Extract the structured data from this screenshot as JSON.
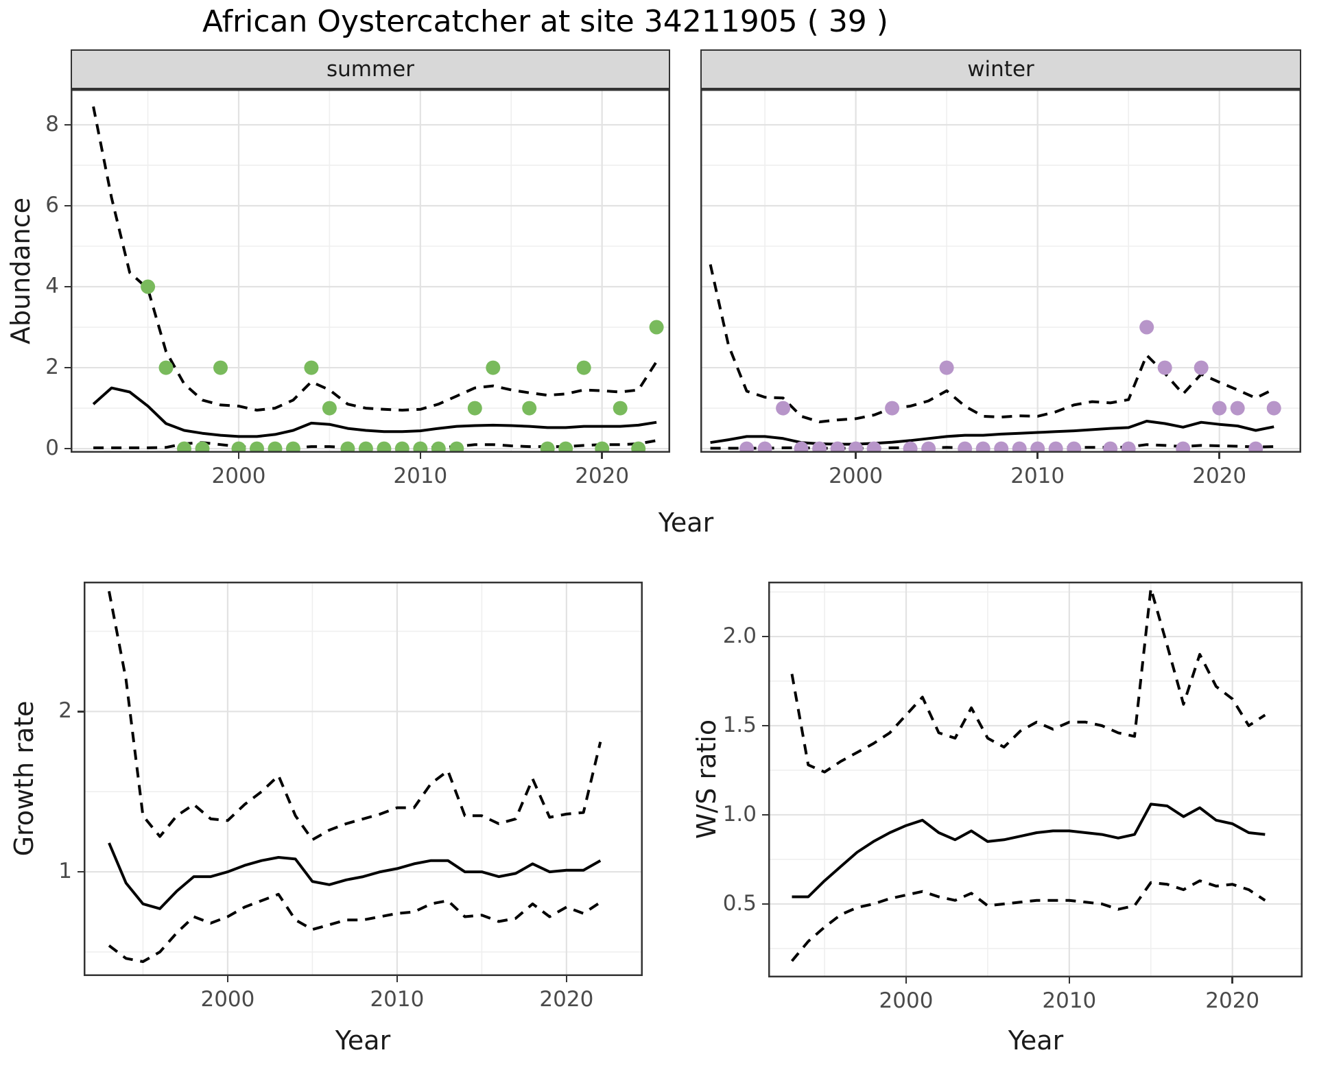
{
  "title": "African Oystercatcher at site 34211905 ( 39 )",
  "colors": {
    "summer_point": "#79ba5c",
    "winter_point": "#b795c9",
    "line": "#000000",
    "grid_major": "#e2e2e2",
    "grid_minor": "#efefef",
    "panel_border": "#333333",
    "strip_background": "#d8d8d8",
    "axis_text": "#4a4a4a",
    "panel_background": "#ffffff"
  },
  "chart_data": [
    {
      "id": "abundance-summer",
      "type": "line",
      "facet_label": "summer",
      "xlabel": "Year",
      "ylabel": "Abundance",
      "xlim": [
        1990.75,
        2023.75
      ],
      "ylim": [
        -0.1,
        8.88
      ],
      "grid": true,
      "legend": "none",
      "show_y_axis": true,
      "xticks_major": [
        2000,
        2010,
        2020
      ],
      "xticks_minor": [
        1995,
        2005,
        2015
      ],
      "xtick_labels": [
        "2000",
        "2010",
        "2020"
      ],
      "yticks_major": [
        0,
        2,
        4,
        6,
        8
      ],
      "yticks_minor": [
        1,
        3,
        5,
        7
      ],
      "ytick_labels": [
        "0",
        "2",
        "4",
        "6",
        "8"
      ],
      "years": [
        1992,
        1993,
        1994,
        1995,
        1996,
        1997,
        1998,
        1999,
        2000,
        2001,
        2002,
        2003,
        2004,
        2005,
        2006,
        2007,
        2008,
        2009,
        2010,
        2011,
        2012,
        2013,
        2014,
        2015,
        2016,
        2017,
        2018,
        2019,
        2020,
        2021,
        2022,
        2023
      ],
      "series": [
        {
          "name": "upper-ci",
          "style": "dashed",
          "values": [
            8.45,
            6.2,
            4.35,
            3.95,
            2.4,
            1.6,
            1.2,
            1.08,
            1.05,
            0.95,
            1.0,
            1.2,
            1.65,
            1.45,
            1.1,
            1.0,
            0.97,
            0.95,
            0.97,
            1.1,
            1.3,
            1.5,
            1.55,
            1.45,
            1.38,
            1.32,
            1.35,
            1.45,
            1.43,
            1.4,
            1.45,
            2.15
          ]
        },
        {
          "name": "lower-ci",
          "style": "dashed",
          "values": [
            0.02,
            0.02,
            0.02,
            0.02,
            0.03,
            0.12,
            0.15,
            0.1,
            0.05,
            0.03,
            0.02,
            0.02,
            0.05,
            0.05,
            0.03,
            0.02,
            0.02,
            0.02,
            0.02,
            0.03,
            0.05,
            0.1,
            0.1,
            0.07,
            0.05,
            0.05,
            0.05,
            0.08,
            0.1,
            0.1,
            0.12,
            0.2
          ]
        },
        {
          "name": "fit",
          "style": "solid",
          "values": [
            1.1,
            1.5,
            1.4,
            1.05,
            0.62,
            0.45,
            0.38,
            0.33,
            0.3,
            0.3,
            0.35,
            0.45,
            0.63,
            0.6,
            0.5,
            0.45,
            0.42,
            0.42,
            0.44,
            0.5,
            0.55,
            0.57,
            0.58,
            0.57,
            0.55,
            0.52,
            0.52,
            0.55,
            0.55,
            0.55,
            0.58,
            0.65
          ]
        }
      ],
      "points": {
        "name": "observed-count",
        "color": "#79ba5c",
        "values": [
          [
            1995,
            4
          ],
          [
            1996,
            2
          ],
          [
            1997,
            0
          ],
          [
            1998,
            0
          ],
          [
            1999,
            2
          ],
          [
            2000,
            0
          ],
          [
            2001,
            0
          ],
          [
            2002,
            0
          ],
          [
            2003,
            0
          ],
          [
            2004,
            2
          ],
          [
            2005,
            1
          ],
          [
            2006,
            0
          ],
          [
            2007,
            0
          ],
          [
            2008,
            0
          ],
          [
            2009,
            0
          ],
          [
            2010,
            0
          ],
          [
            2011,
            0
          ],
          [
            2012,
            0
          ],
          [
            2013,
            1
          ],
          [
            2014,
            2
          ],
          [
            2016,
            1
          ],
          [
            2017,
            0
          ],
          [
            2018,
            0
          ],
          [
            2019,
            2
          ],
          [
            2020,
            0
          ],
          [
            2021,
            1
          ],
          [
            2022,
            0
          ],
          [
            2023,
            3
          ]
        ]
      }
    },
    {
      "id": "abundance-winter",
      "type": "line",
      "facet_label": "winter",
      "xlabel": "Year",
      "ylabel": "Abundance",
      "xlim": [
        1991.45,
        2024.5
      ],
      "ylim": [
        -0.1,
        8.88
      ],
      "grid": true,
      "legend": "none",
      "show_y_axis": false,
      "xticks_major": [
        2000,
        2010,
        2020
      ],
      "xticks_minor": [
        1995,
        2005,
        2015
      ],
      "xtick_labels": [
        "2000",
        "2010",
        "2020"
      ],
      "yticks_major": [
        0,
        2,
        4,
        6,
        8
      ],
      "yticks_minor": [
        1,
        3,
        5,
        7
      ],
      "ytick_labels": [],
      "years": [
        1992,
        1993,
        1994,
        1995,
        1996,
        1997,
        1998,
        1999,
        2000,
        2001,
        2002,
        2003,
        2004,
        2005,
        2006,
        2007,
        2008,
        2009,
        2010,
        2011,
        2012,
        2013,
        2014,
        2015,
        2016,
        2017,
        2018,
        2019,
        2020,
        2021,
        2022,
        2023
      ],
      "series": [
        {
          "name": "upper-ci",
          "style": "dashed",
          "values": [
            4.55,
            2.55,
            1.42,
            1.27,
            1.25,
            0.8,
            0.66,
            0.71,
            0.74,
            0.83,
            1.0,
            1.05,
            1.18,
            1.43,
            1.05,
            0.8,
            0.78,
            0.81,
            0.8,
            0.91,
            1.08,
            1.16,
            1.13,
            1.21,
            2.31,
            1.86,
            1.35,
            1.84,
            1.64,
            1.45,
            1.25,
            1.47
          ]
        },
        {
          "name": "lower-ci",
          "style": "dashed",
          "values": [
            0.01,
            0.01,
            0.01,
            0.01,
            0.02,
            0.02,
            0.01,
            0.01,
            0.01,
            0.01,
            0.02,
            0.02,
            0.02,
            0.03,
            0.02,
            0.02,
            0.02,
            0.02,
            0.02,
            0.02,
            0.03,
            0.03,
            0.03,
            0.04,
            0.1,
            0.08,
            0.05,
            0.08,
            0.07,
            0.06,
            0.04,
            0.05
          ]
        },
        {
          "name": "fit",
          "style": "solid",
          "values": [
            0.15,
            0.22,
            0.3,
            0.3,
            0.25,
            0.15,
            0.12,
            0.11,
            0.11,
            0.13,
            0.16,
            0.2,
            0.25,
            0.3,
            0.33,
            0.33,
            0.36,
            0.38,
            0.4,
            0.42,
            0.44,
            0.47,
            0.5,
            0.52,
            0.68,
            0.62,
            0.53,
            0.65,
            0.6,
            0.56,
            0.45,
            0.54
          ]
        }
      ],
      "points": {
        "name": "observed-count",
        "color": "#b795c9",
        "values": [
          [
            1994,
            0
          ],
          [
            1995,
            0
          ],
          [
            1996,
            1
          ],
          [
            1997,
            0
          ],
          [
            1998,
            0
          ],
          [
            1999,
            0
          ],
          [
            2000,
            0
          ],
          [
            2001,
            0
          ],
          [
            2002,
            1
          ],
          [
            2003,
            0
          ],
          [
            2004,
            0
          ],
          [
            2005,
            2
          ],
          [
            2006,
            0
          ],
          [
            2007,
            0
          ],
          [
            2008,
            0
          ],
          [
            2009,
            0
          ],
          [
            2010,
            0
          ],
          [
            2011,
            0
          ],
          [
            2012,
            0
          ],
          [
            2014,
            0
          ],
          [
            2015,
            0
          ],
          [
            2016,
            3
          ],
          [
            2017,
            2
          ],
          [
            2018,
            0
          ],
          [
            2019,
            2
          ],
          [
            2020,
            1
          ],
          [
            2021,
            1
          ],
          [
            2022,
            0
          ],
          [
            2023,
            1
          ]
        ]
      }
    },
    {
      "id": "growth-rate",
      "type": "line",
      "facet_label": "",
      "xlabel": "Year",
      "ylabel": "Growth rate",
      "xlim": [
        1991.5,
        2024.5
      ],
      "ylim": [
        0.35,
        2.81
      ],
      "grid": true,
      "legend": "none",
      "show_y_axis": true,
      "xticks_major": [
        2000,
        2010,
        2020
      ],
      "xticks_minor": [
        1995,
        2005,
        2015
      ],
      "xtick_labels": [
        "2000",
        "2010",
        "2020"
      ],
      "yticks_major": [
        1,
        2
      ],
      "yticks_minor": [
        0.5,
        1.5,
        2.5
      ],
      "ytick_labels": [
        "1",
        "2"
      ],
      "years": [
        1993,
        1994,
        1995,
        1996,
        1997,
        1998,
        1999,
        2000,
        2001,
        2002,
        2003,
        2004,
        2005,
        2006,
        2007,
        2008,
        2009,
        2010,
        2011,
        2012,
        2013,
        2014,
        2015,
        2016,
        2017,
        2018,
        2019,
        2020,
        2021,
        2022
      ],
      "series": [
        {
          "name": "upper-ci",
          "style": "dashed",
          "values": [
            2.75,
            2.2,
            1.35,
            1.22,
            1.35,
            1.42,
            1.33,
            1.32,
            1.42,
            1.5,
            1.6,
            1.35,
            1.2,
            1.26,
            1.3,
            1.33,
            1.36,
            1.4,
            1.4,
            1.55,
            1.63,
            1.35,
            1.35,
            1.3,
            1.33,
            1.58,
            1.34,
            1.36,
            1.37,
            1.81
          ]
        },
        {
          "name": "lower-ci",
          "style": "dashed",
          "values": [
            0.54,
            0.46,
            0.44,
            0.5,
            0.62,
            0.72,
            0.68,
            0.72,
            0.78,
            0.82,
            0.86,
            0.7,
            0.64,
            0.67,
            0.7,
            0.7,
            0.72,
            0.74,
            0.75,
            0.8,
            0.82,
            0.72,
            0.73,
            0.69,
            0.71,
            0.8,
            0.72,
            0.78,
            0.74,
            0.81
          ]
        },
        {
          "name": "fit",
          "style": "solid",
          "values": [
            1.18,
            0.93,
            0.8,
            0.77,
            0.88,
            0.97,
            0.97,
            1.0,
            1.04,
            1.07,
            1.09,
            1.08,
            0.94,
            0.92,
            0.95,
            0.97,
            1.0,
            1.02,
            1.05,
            1.07,
            1.07,
            1.0,
            1.0,
            0.97,
            0.99,
            1.05,
            1.0,
            1.01,
            1.01,
            1.07
          ]
        }
      ],
      "points": null
    },
    {
      "id": "ws-ratio",
      "type": "line",
      "facet_label": "",
      "xlabel": "Year",
      "ylabel": "W/S ratio",
      "xlim": [
        1991.55,
        2024.3
      ],
      "ylim": [
        0.088,
        2.308
      ],
      "grid": true,
      "legend": "none",
      "show_y_axis": true,
      "xticks_major": [
        2000,
        2010,
        2020
      ],
      "xticks_minor": [
        1995,
        2005,
        2015
      ],
      "xtick_labels": [
        "2000",
        "2010",
        "2020"
      ],
      "yticks_major": [
        0.5,
        1.0,
        1.5,
        2.0
      ],
      "yticks_minor": [
        0.25,
        0.75,
        1.25,
        1.75,
        2.25
      ],
      "ytick_labels": [
        "0.5",
        "1.0",
        "1.5",
        "2.0"
      ],
      "years": [
        1993,
        1994,
        1995,
        1996,
        1997,
        1998,
        1999,
        2000,
        2001,
        2002,
        2003,
        2004,
        2005,
        2006,
        2007,
        2008,
        2009,
        2010,
        2011,
        2012,
        2013,
        2014,
        2015,
        2016,
        2017,
        2018,
        2019,
        2020,
        2021,
        2022
      ],
      "series": [
        {
          "name": "upper-ci",
          "style": "dashed",
          "values": [
            1.79,
            1.28,
            1.24,
            1.3,
            1.35,
            1.4,
            1.46,
            1.56,
            1.66,
            1.46,
            1.43,
            1.6,
            1.43,
            1.38,
            1.47,
            1.52,
            1.48,
            1.52,
            1.52,
            1.5,
            1.46,
            1.44,
            2.27,
            1.95,
            1.62,
            1.9,
            1.72,
            1.65,
            1.5,
            1.56
          ]
        },
        {
          "name": "lower-ci",
          "style": "dashed",
          "values": [
            0.18,
            0.29,
            0.37,
            0.44,
            0.48,
            0.5,
            0.53,
            0.55,
            0.57,
            0.54,
            0.52,
            0.56,
            0.49,
            0.5,
            0.51,
            0.52,
            0.52,
            0.52,
            0.51,
            0.5,
            0.47,
            0.49,
            0.62,
            0.61,
            0.58,
            0.63,
            0.6,
            0.61,
            0.58,
            0.52
          ]
        },
        {
          "name": "fit",
          "style": "solid",
          "values": [
            0.54,
            0.54,
            0.63,
            0.71,
            0.79,
            0.85,
            0.9,
            0.94,
            0.97,
            0.9,
            0.86,
            0.91,
            0.85,
            0.86,
            0.88,
            0.9,
            0.91,
            0.91,
            0.9,
            0.89,
            0.87,
            0.89,
            1.06,
            1.05,
            0.99,
            1.04,
            0.97,
            0.95,
            0.9,
            0.89
          ]
        }
      ],
      "points": null
    }
  ]
}
